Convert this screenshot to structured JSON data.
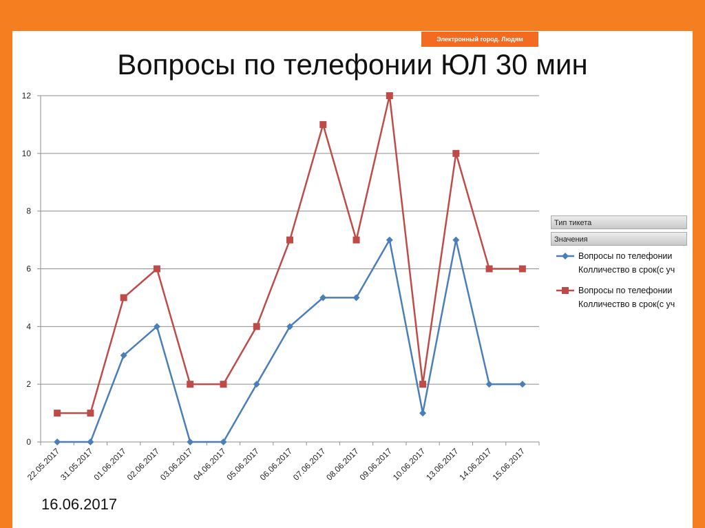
{
  "slide": {
    "banner": "Электронный город. Людям",
    "date": "16.06.2017"
  },
  "chart_data": {
    "type": "line",
    "title": "Вопросы по телефонии ЮЛ 30 мин",
    "categories": [
      "22.05.2017",
      "31.05.2017",
      "01.06.2017",
      "02.06.2017",
      "03.06.2017",
      "04.06.2017",
      "05.06.2017",
      "06.06.2017",
      "07.06.2017",
      "08.06.2017",
      "09.06.2017",
      "10.06.2017",
      "13.06.2017",
      "14.06.2017",
      "15.06.2017"
    ],
    "series": [
      {
        "name": "Вопросы по телефонии Колличество в срок(с уч",
        "color": "#4a7ebb",
        "marker": "diamond",
        "values": [
          0,
          0,
          3,
          4,
          0,
          0,
          2,
          4,
          5,
          5,
          7,
          1,
          7,
          2,
          2
        ]
      },
      {
        "name": "Вопросы по телефонии Колличество в срок(с уч",
        "color": "#be4b48",
        "marker": "square",
        "values": [
          1,
          1,
          5,
          6,
          2,
          2,
          4,
          7,
          11,
          7,
          12,
          2,
          10,
          6,
          6
        ]
      }
    ],
    "legend_fields": [
      "Тип тикета",
      "Значения"
    ],
    "ylim": [
      0,
      12
    ],
    "yticks": [
      0,
      2,
      4,
      6,
      8,
      10,
      12
    ],
    "grid": true
  }
}
